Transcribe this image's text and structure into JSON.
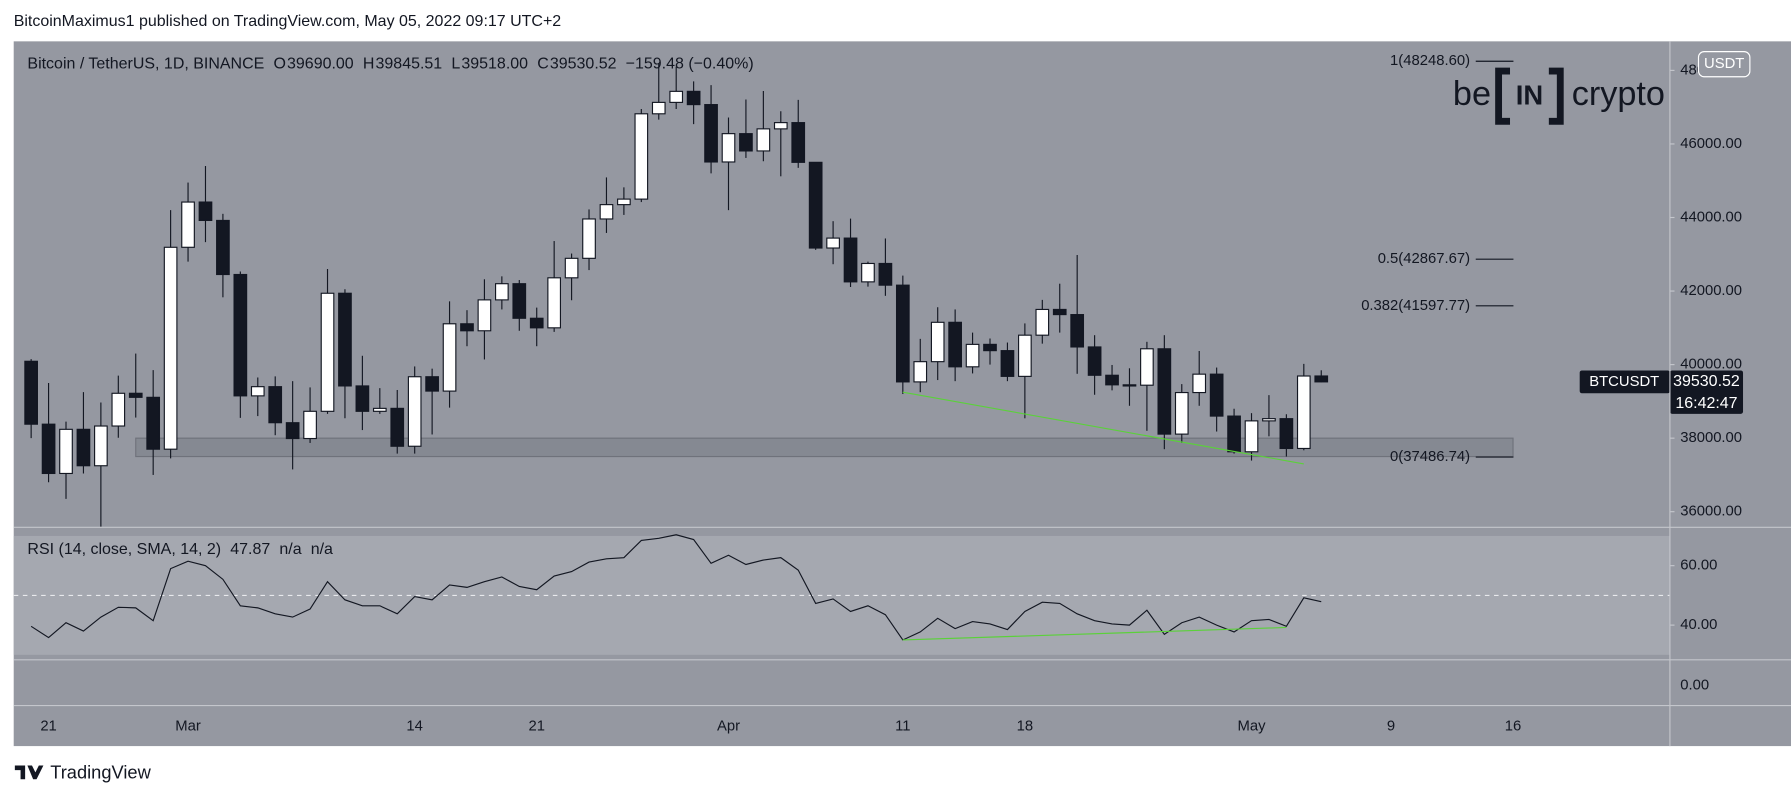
{
  "header": "BitcoinMaximus1 published on TradingView.com, May 05, 2022 09:17 UTC+2",
  "footer": "TradingView",
  "watermark": {
    "left": "be",
    "box": "IN",
    "right": "crypto"
  },
  "currency_badge": "USDT",
  "price_tag": {
    "symbol": "BTCUSDT",
    "countdown": "16:42:47"
  },
  "legend": {
    "ohlc": [
      {
        "key": "O",
        "text": "39690.00"
      },
      {
        "key": "H",
        "text": "39845.51"
      },
      {
        "key": "L",
        "text": "39518.00"
      },
      {
        "key": "C",
        "text": "39530.52"
      }
    ],
    "change": "−159.48 (−0.40%)",
    "rsi_extra": [
      "n/a",
      "n/a"
    ]
  },
  "lower_pane": {
    "yticks": [
      {
        "value": 0,
        "label": "0.00"
      }
    ]
  },
  "chart_data": [
    {
      "type": "candlestick",
      "title": "Bitcoin / TetherUS, 1D, BINANCE",
      "up_color": "#ffffff",
      "down_color": "#131722",
      "x": [
        "2022-02-20",
        "2022-02-21",
        "2022-02-22",
        "2022-02-23",
        "2022-02-24",
        "2022-02-25",
        "2022-02-26",
        "2022-02-27",
        "2022-02-28",
        "2022-03-01",
        "2022-03-02",
        "2022-03-03",
        "2022-03-04",
        "2022-03-05",
        "2022-03-06",
        "2022-03-07",
        "2022-03-08",
        "2022-03-09",
        "2022-03-10",
        "2022-03-11",
        "2022-03-12",
        "2022-03-13",
        "2022-03-14",
        "2022-03-15",
        "2022-03-16",
        "2022-03-17",
        "2022-03-18",
        "2022-03-19",
        "2022-03-20",
        "2022-03-21",
        "2022-03-22",
        "2022-03-23",
        "2022-03-24",
        "2022-03-25",
        "2022-03-26",
        "2022-03-27",
        "2022-03-28",
        "2022-03-29",
        "2022-03-30",
        "2022-03-31",
        "2022-04-01",
        "2022-04-02",
        "2022-04-03",
        "2022-04-04",
        "2022-04-05",
        "2022-04-06",
        "2022-04-07",
        "2022-04-08",
        "2022-04-09",
        "2022-04-10",
        "2022-04-11",
        "2022-04-12",
        "2022-04-13",
        "2022-04-14",
        "2022-04-15",
        "2022-04-16",
        "2022-04-17",
        "2022-04-18",
        "2022-04-19",
        "2022-04-20",
        "2022-04-21",
        "2022-04-22",
        "2022-04-23",
        "2022-04-24",
        "2022-04-25",
        "2022-04-26",
        "2022-04-27",
        "2022-04-28",
        "2022-04-29",
        "2022-04-30",
        "2022-05-01",
        "2022-05-02",
        "2022-05-03",
        "2022-05-04",
        "2022-05-05"
      ],
      "open": [
        40090,
        38380,
        37040,
        38240,
        37250,
        38330,
        39220,
        39110,
        37700,
        43190,
        44420,
        43920,
        42450,
        39150,
        39400,
        38420,
        37990,
        38730,
        41940,
        39420,
        38730,
        38810,
        37780,
        39670,
        39280,
        41110,
        40920,
        41760,
        42200,
        41260,
        41000,
        42360,
        42890,
        43960,
        44350,
        44500,
        46820,
        47130,
        47430,
        47070,
        45510,
        46280,
        45810,
        46410,
        46580,
        45500,
        43170,
        43440,
        42250,
        42750,
        42160,
        39530,
        40080,
        41150,
        39940,
        40550,
        40380,
        39680,
        40800,
        41500,
        41360,
        40480,
        39710,
        39450,
        39440,
        40430,
        38110,
        39240,
        39740,
        38600,
        37630,
        38470,
        38530,
        37720,
        39690
      ],
      "high": [
        40150,
        39500,
        38450,
        39250,
        38970,
        39700,
        40300,
        39850,
        44200,
        44950,
        45400,
        44100,
        42530,
        39650,
        39680,
        39550,
        39380,
        42600,
        42050,
        40240,
        39360,
        39310,
        39950,
        39890,
        41720,
        41480,
        42320,
        42400,
        42300,
        41550,
        43360,
        43020,
        44220,
        45090,
        44820,
        46950,
        48190,
        48100,
        47700,
        47600,
        46720,
        47210,
        47440,
        46890,
        47200,
        45500,
        43900,
        43970,
        42800,
        43430,
        42420,
        40700,
        41560,
        41500,
        40870,
        40710,
        40600,
        41120,
        41760,
        42200,
        42980,
        40800,
        39990,
        39900,
        40620,
        40800,
        39470,
        40370,
        39920,
        38800,
        38680,
        39170,
        38650,
        40020,
        39845.51
      ],
      "low": [
        38000,
        36800,
        36350,
        37040,
        34320,
        38010,
        38560,
        37000,
        37450,
        42800,
        43330,
        41830,
        38550,
        38600,
        38080,
        37150,
        37870,
        38660,
        38540,
        38220,
        38660,
        37580,
        37580,
        38100,
        38830,
        40500,
        40140,
        41500,
        40920,
        40500,
        40890,
        41750,
        42570,
        43580,
        44070,
        44420,
        46660,
        46950,
        46540,
        45200,
        44200,
        45620,
        45530,
        45120,
        45350,
        43120,
        42730,
        42110,
        42120,
        41870,
        39200,
        39250,
        39580,
        39550,
        39760,
        40000,
        39550,
        38540,
        40570,
        40870,
        39750,
        39180,
        39300,
        38880,
        38200,
        37700,
        37870,
        38880,
        38180,
        37580,
        37390,
        38050,
        37500,
        37670,
        39518
      ],
      "close": [
        38380,
        37040,
        38240,
        37250,
        38330,
        39220,
        39110,
        37700,
        43190,
        44420,
        43920,
        42450,
        39150,
        39400,
        38420,
        37990,
        38730,
        41940,
        39420,
        38730,
        38810,
        37780,
        39670,
        39280,
        41110,
        40920,
        41760,
        42200,
        41260,
        41000,
        42360,
        42890,
        43960,
        44350,
        44500,
        46820,
        47130,
        47430,
        47070,
        45510,
        46280,
        45810,
        46410,
        46580,
        45500,
        43170,
        43440,
        42250,
        42750,
        42160,
        39530,
        40080,
        41150,
        39940,
        40550,
        40380,
        39680,
        40800,
        41500,
        41360,
        40480,
        39710,
        39450,
        39440,
        40430,
        38110,
        39240,
        39740,
        38600,
        37630,
        38470,
        38530,
        37720,
        39690,
        39530.52
      ],
      "ylim": [
        35590,
        48790
      ],
      "yticks": [
        {
          "value": 36000,
          "label": "36000.00"
        },
        {
          "value": 38000,
          "label": "38000.00"
        },
        {
          "value": 40000,
          "label": "40000.00"
        },
        {
          "value": 42000,
          "label": "42000.00"
        },
        {
          "value": 44000,
          "label": "44000.00"
        },
        {
          "value": 46000,
          "label": "46000.00"
        },
        {
          "value": 48000,
          "label": "48000.00"
        }
      ],
      "xlim": [
        "2022-02-19",
        "2022-05-25"
      ],
      "xticks": [
        {
          "value": "2022-02-21",
          "label": "21"
        },
        {
          "value": "2022-03-01",
          "label": "Mar"
        },
        {
          "value": "2022-03-14",
          "label": "14"
        },
        {
          "value": "2022-03-21",
          "label": "21"
        },
        {
          "value": "2022-04-01",
          "label": "Apr"
        },
        {
          "value": "2022-04-11",
          "label": "11"
        },
        {
          "value": "2022-04-18",
          "label": "18"
        },
        {
          "value": "2022-05-01",
          "label": "May"
        },
        {
          "value": "2022-05-09",
          "label": "9"
        },
        {
          "value": "2022-05-16",
          "label": "16"
        }
      ],
      "grid": false,
      "fib_levels": [
        {
          "value": 48248.6,
          "label": "1(48248.60)"
        },
        {
          "value": 42867.67,
          "label": "0.5(42867.67)"
        },
        {
          "value": 41597.77,
          "label": "0.382(41597.77)"
        },
        {
          "value": 37486.74,
          "label": "0(37486.74)"
        }
      ],
      "support_zone": {
        "start": "2022-02-26",
        "end": "2022-05-16",
        "low": 37500,
        "high": 38000
      },
      "trendline": {
        "x": [
          "2022-04-11",
          "2022-05-04"
        ],
        "y": [
          39250,
          37300
        ],
        "color": "#5bd13a"
      }
    },
    {
      "type": "line",
      "title": "RSI (14, close, SMA, 14, 2)",
      "color": "#131722",
      "values": [
        39.6,
        35.8,
        40.8,
        38,
        42.7,
        46,
        45.8,
        41.5,
        59,
        61.5,
        60,
        55.4,
        46.5,
        45.8,
        43.8,
        42.7,
        45.4,
        54.6,
        48.5,
        46.5,
        46.5,
        43.8,
        49.6,
        48.5,
        53.5,
        52.7,
        54.6,
        56.2,
        53,
        51.9,
        56.5,
        58,
        61.2,
        62.3,
        62.7,
        68.5,
        69.2,
        70.4,
        68.8,
        60.8,
        63.5,
        60.4,
        61.9,
        62.7,
        58.5,
        47.3,
        48.8,
        44.6,
        46.5,
        43.5,
        35,
        37.7,
        42.3,
        38.8,
        41.2,
        40.4,
        38.5,
        44.6,
        47.7,
        47.3,
        43.8,
        41.5,
        40.4,
        40,
        45,
        36.9,
        40.8,
        42.7,
        40,
        37.7,
        41.5,
        41.9,
        39.6,
        49.2,
        47.87
      ],
      "ylim": [
        28.5,
        72.7
      ],
      "yticks": [
        {
          "value": 40,
          "label": "40.00"
        },
        {
          "value": 60,
          "label": "60.00"
        }
      ],
      "band": [
        30,
        70
      ],
      "midline": 50,
      "trendline": {
        "x": [
          "2022-04-11",
          "2022-05-03"
        ],
        "y": [
          35,
          39.2
        ],
        "color": "#5bd13a"
      }
    }
  ]
}
